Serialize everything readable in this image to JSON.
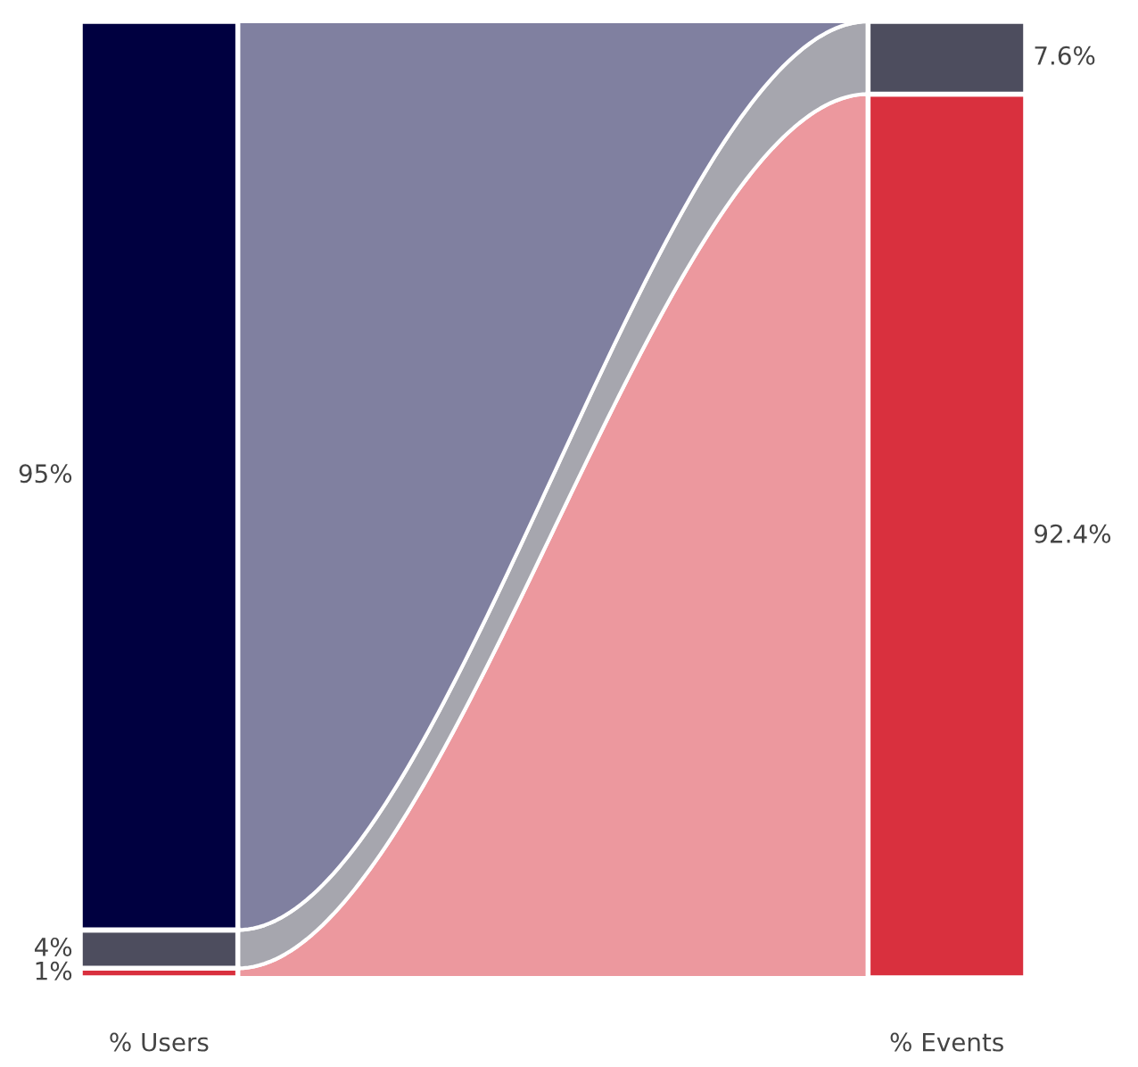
{
  "chart_data": {
    "type": "other",
    "categories": [
      "% Users",
      "% Events"
    ],
    "series": [
      {
        "color": "#d9303e",
        "values": [
          1,
          92.4
        ],
        "value_labels": [
          "1%",
          "92.4%"
        ]
      },
      {
        "color": "#4d4d5e",
        "values": [
          4,
          7.6
        ],
        "value_labels": [
          "4%",
          "7.6%"
        ]
      },
      {
        "color": "#000040",
        "values": [
          95,
          null
        ],
        "value_labels": [
          "95%",
          null
        ]
      }
    ],
    "legend": false
  }
}
